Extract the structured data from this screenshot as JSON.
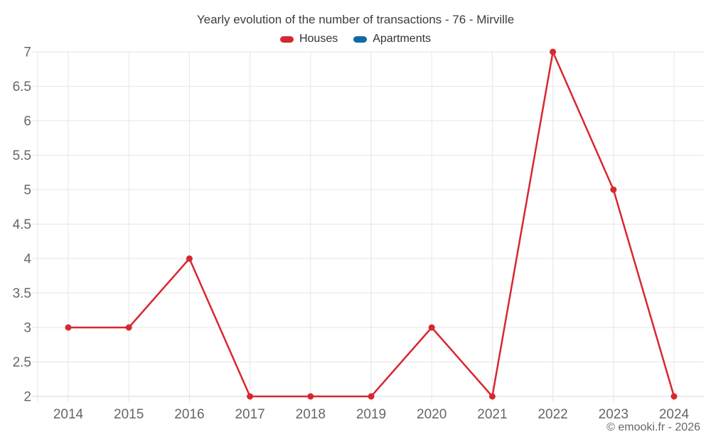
{
  "chart_data": {
    "type": "line",
    "title": "Yearly evolution of the number of transactions - 76 - Mirville",
    "categories": [
      "2014",
      "2015",
      "2016",
      "2017",
      "2018",
      "2019",
      "2020",
      "2021",
      "2022",
      "2023",
      "2024"
    ],
    "series": [
      {
        "name": "Houses",
        "color": "#d7282f",
        "values": [
          3,
          3,
          4,
          2,
          2,
          2,
          3,
          2,
          7,
          5,
          2
        ]
      },
      {
        "name": "Apartments",
        "color": "#1269a2",
        "values": []
      }
    ],
    "xlabel": "",
    "ylabel": "",
    "ylim": [
      2,
      7
    ],
    "ytick_step": 0.5,
    "grid": true,
    "legend_position": "top",
    "marker": "circle"
  },
  "colors": {
    "gridline": "#e6e6e6",
    "axis_line": "#d9d9d9",
    "tick_label": "#666666",
    "title": "#3d3d3d",
    "legend_label": "#333333",
    "footer": "#666666"
  },
  "footer": {
    "text": "© emooki.fr - 2026"
  }
}
